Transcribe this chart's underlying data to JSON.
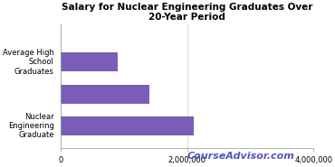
{
  "title": "Salary for Nuclear Engineering Graduates Over\n20-Year Period",
  "categories": [
    "Average High\nSchool\nGraduates",
    "",
    "Nuclear\nEngineering\nGraduate"
  ],
  "values": [
    900000,
    1400000,
    2100000
  ],
  "bar_color": "#7B5CB8",
  "xlim": [
    0,
    4000000
  ],
  "xticks": [
    0,
    2000000,
    4000000
  ],
  "xtick_labels": [
    "0",
    "2,000,000",
    "4,000,000"
  ],
  "watermark": "CourseAdvisor.com",
  "watermark_color": "#5555BB",
  "bg_color": "#FFFFFF",
  "title_fontsize": 7.5,
  "tick_fontsize": 6.0,
  "watermark_fontsize": 8.0
}
